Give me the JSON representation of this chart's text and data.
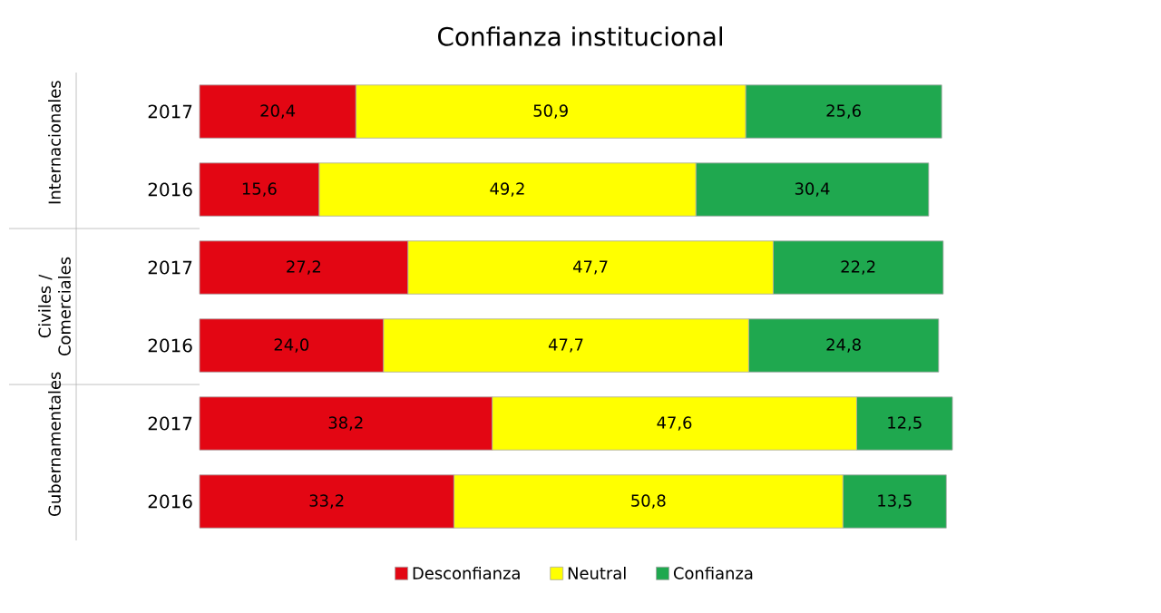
{
  "chart_data": {
    "type": "bar",
    "orientation": "horizontal",
    "stacked": true,
    "title": "Confianza institucional",
    "categories": [
      "2017",
      "2016",
      "2017",
      "2016",
      "2017",
      "2016"
    ],
    "series": [
      {
        "name": "Desconfianza",
        "color": "#e30613",
        "values": [
          20.4,
          15.6,
          27.2,
          24.0,
          38.2,
          33.2
        ],
        "value_labels": [
          "20,4",
          "15,6",
          "27,2",
          "24,0",
          "38,2",
          "33,2"
        ]
      },
      {
        "name": "Neutral",
        "color": "#ffff00",
        "values": [
          50.9,
          49.2,
          47.7,
          47.7,
          47.6,
          50.8
        ],
        "value_labels": [
          "50,9",
          "49,2",
          "47,7",
          "47,7",
          "47,6",
          "50,8"
        ]
      },
      {
        "name": "Confianza",
        "color": "#1fa84f",
        "values": [
          25.6,
          30.4,
          22.2,
          24.8,
          12.5,
          13.5
        ],
        "value_labels": [
          "25,6",
          "30,4",
          "22,2",
          "24,8",
          "12,5",
          "13,5"
        ]
      }
    ],
    "annotations": [
      "Internacionales",
      "Civiles / Comerciales",
      "Gubernamentales"
    ],
    "legend": "bottom"
  }
}
